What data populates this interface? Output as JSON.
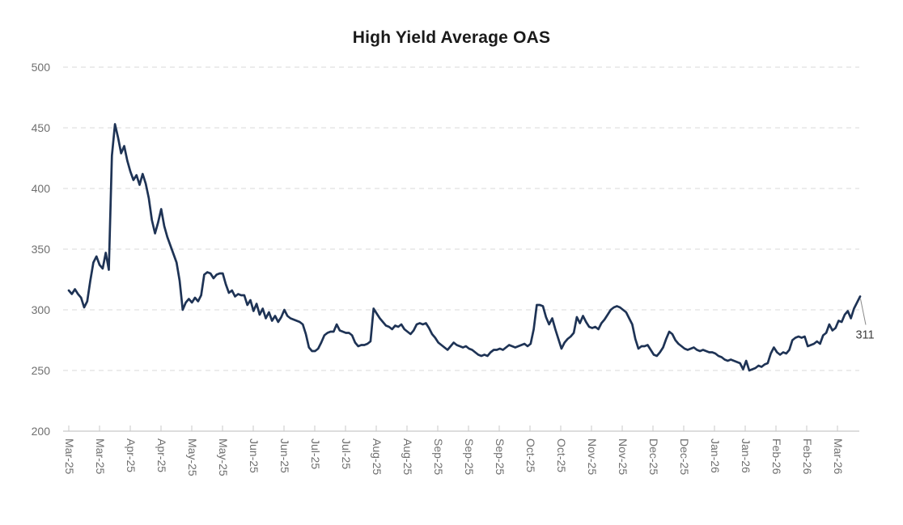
{
  "chart_data": {
    "type": "line",
    "title": "High Yield Average OAS",
    "series": [
      {
        "name": "High Yield Average OAS",
        "values": [
          316,
          313,
          317,
          313,
          310,
          302,
          307,
          324,
          339,
          344,
          337,
          334,
          347,
          333,
          427,
          453,
          442,
          429,
          435,
          423,
          414,
          407,
          411,
          403,
          412,
          404,
          392,
          374,
          363,
          372,
          383,
          369,
          360,
          353,
          346,
          339,
          324,
          300,
          306,
          309,
          306,
          310,
          307,
          312,
          329,
          331,
          330,
          326,
          329,
          330,
          330,
          321,
          314,
          316,
          311,
          313,
          312,
          312,
          304,
          308,
          299,
          305,
          296,
          301,
          293,
          298,
          291,
          295,
          290,
          294,
          300,
          295,
          293,
          292,
          291,
          290,
          288,
          280,
          269,
          266,
          266,
          268,
          273,
          279,
          281,
          282,
          282,
          288,
          283,
          282,
          281,
          281,
          279,
          273,
          270,
          271,
          271,
          272,
          274,
          301,
          297,
          293,
          290,
          287,
          286,
          284,
          287,
          286,
          288,
          284,
          282,
          280,
          283,
          288,
          289,
          288,
          289,
          285,
          280,
          277,
          273,
          271,
          269,
          267,
          270,
          273,
          271,
          270,
          269,
          270,
          268,
          267,
          265,
          263,
          262,
          263,
          262,
          265,
          267,
          267,
          268,
          267,
          269,
          271,
          270,
          269,
          270,
          271,
          272,
          270,
          272,
          284,
          304,
          304,
          303,
          294,
          288,
          293,
          284,
          276,
          268,
          273,
          276,
          278,
          281,
          294,
          289,
          295,
          290,
          286,
          285,
          286,
          284,
          289,
          292,
          296,
          300,
          302,
          303,
          302,
          300,
          298,
          293,
          288,
          276,
          268,
          270,
          270,
          271,
          267,
          263,
          262,
          265,
          269,
          276,
          282,
          280,
          275,
          272,
          270,
          268,
          267,
          268,
          269,
          267,
          266,
          267,
          266,
          265,
          265,
          264,
          262,
          261,
          259,
          258,
          259,
          258,
          257,
          256,
          251,
          258,
          250,
          251,
          252,
          254,
          253,
          255,
          256,
          264,
          269,
          265,
          263,
          265,
          264,
          267,
          275,
          277,
          278,
          277,
          278,
          270,
          271,
          272,
          274,
          272,
          279,
          281,
          288,
          283,
          285,
          291,
          290,
          296,
          299,
          293,
          301,
          306,
          311
        ]
      }
    ],
    "x_tick_labels": [
      "Mar-25",
      "Mar-25",
      "Apr-25",
      "Apr-25",
      "May-25",
      "May-25",
      "Jun-25",
      "Jun-25",
      "Jul-25",
      "Jul-25",
      "Aug-25",
      "Aug-25",
      "Sep-25",
      "Sep-25",
      "Sep-25",
      "Oct-25",
      "Oct-25",
      "Nov-25",
      "Nov-25",
      "Dec-25",
      "Dec-25",
      "Jan-26",
      "Jan-26",
      "Feb-26",
      "Feb-26",
      "Mar-26"
    ],
    "points_per_tick": 10,
    "y_ticks": [
      200,
      250,
      300,
      350,
      400,
      450,
      500
    ],
    "ylim": [
      200,
      500
    ],
    "grid": "horizontal-dashed",
    "legend_position": "none",
    "last_value_label": "311",
    "last_value": 311,
    "colors": {
      "line": "#1e3355",
      "grid": "#d9d9d9",
      "axis_line": "#d2d2d2",
      "tick_mark": "#c9c9c9",
      "axis_labels": "#6f6f6f",
      "title": "#1a1a1a",
      "annotation_text": "#3f3f3f",
      "annotation_leader": "#8a8a8a",
      "background": "#ffffff"
    }
  }
}
